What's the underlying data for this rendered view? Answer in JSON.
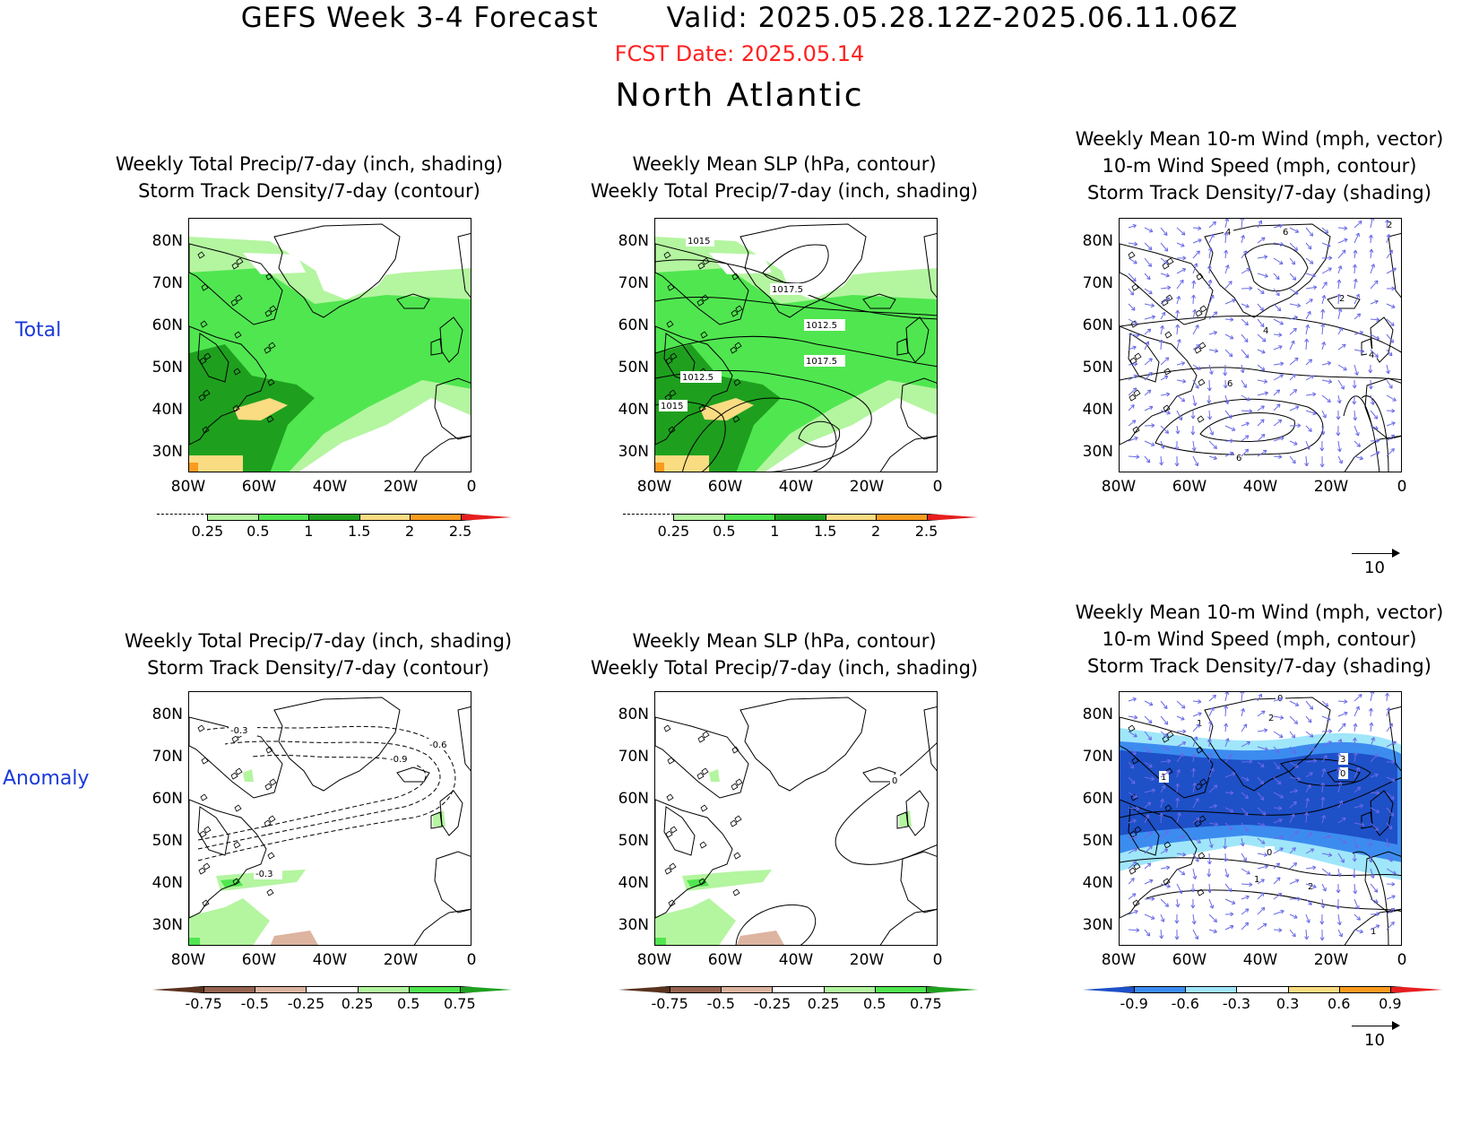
{
  "header": {
    "title": "GEFS Week 3-4 Forecast       Valid: 2025.05.28.12Z-2025.06.11.06Z",
    "fcst_date": "FCST Date: 2025.05.14",
    "region": "North Atlantic"
  },
  "rows": {
    "total": "Total",
    "anomaly": "Anomaly"
  },
  "titles": {
    "p1": "Weekly Total Precip/7-day (inch, shading)\nStorm Track Density/7-day (contour)",
    "p2": "Weekly Mean SLP (hPa, contour)\nWeekly Total Precip/7-day (inch, shading)",
    "p3": "Weekly Mean 10-m Wind (mph, vector)\n10-m Wind Speed (mph, contour)\nStorm Track Density/7-day (shading)",
    "p4": "Weekly Total Precip/7-day (inch, shading)\nStorm Track Density/7-day (contour)",
    "p5": "Weekly Mean SLP (hPa, contour)\nWeekly Total Precip/7-day (inch, shading)",
    "p6": "Weekly Mean 10-m Wind (mph, vector)\n10-m Wind Speed (mph, contour)\nStorm Track Density/7-day (shading)"
  },
  "axes": {
    "lat_labels": [
      "80N",
      "70N",
      "60N",
      "50N",
      "40N",
      "30N"
    ],
    "lon_labels": [
      "80W",
      "60W",
      "40W",
      "20W",
      "0"
    ],
    "lat_range": [
      25,
      85
    ],
    "lon_range": [
      -80,
      0
    ]
  },
  "contour_labels": {
    "p2": [
      "1015",
      "1017.5",
      "1012.5",
      "1017.5",
      "1012.5",
      "1015"
    ],
    "p3": [
      "4",
      "6",
      "2",
      "2",
      "4",
      "6",
      "4",
      "6"
    ],
    "p4": [
      "-0.3",
      "-0.6",
      "-0.9",
      "-0.3"
    ],
    "p5": [
      "0"
    ],
    "p6": [
      "0",
      "2",
      "1",
      "3",
      "0",
      "1",
      "0",
      "1",
      "2",
      "1"
    ]
  },
  "colorbars": {
    "total_precip": {
      "labels": [
        "0.25",
        "0.5",
        "1",
        "1.5",
        "2",
        "2.5"
      ],
      "colors": [
        "#ffffff",
        "#b4f5a0",
        "#50e650",
        "#1ea01e",
        "#fadc82",
        "#fa9b1e",
        "#e61e1e"
      ]
    },
    "anom_precip": {
      "labels": [
        "-0.75",
        "-0.5",
        "-0.25",
        "0.25",
        "0.5",
        "0.75"
      ],
      "colors": [
        "#5a321e",
        "#966450",
        "#dcb4a0",
        "#ffffff",
        "#b4f5a0",
        "#50e650",
        "#1ea01e"
      ]
    },
    "anom_storm": {
      "labels": [
        "-0.9",
        "-0.6",
        "-0.3",
        "0.3",
        "0.6",
        "0.9"
      ],
      "colors": [
        "#1e50c8",
        "#3c8cf0",
        "#a0e6fa",
        "#ffffff",
        "#fadc82",
        "#fa9b1e",
        "#e61e1e"
      ]
    }
  },
  "vector_ref": "10",
  "colors": {
    "title_red": "#ff2020",
    "row_label_blue": "#1a3ad8",
    "vector_blue": "#6a6ae6"
  }
}
